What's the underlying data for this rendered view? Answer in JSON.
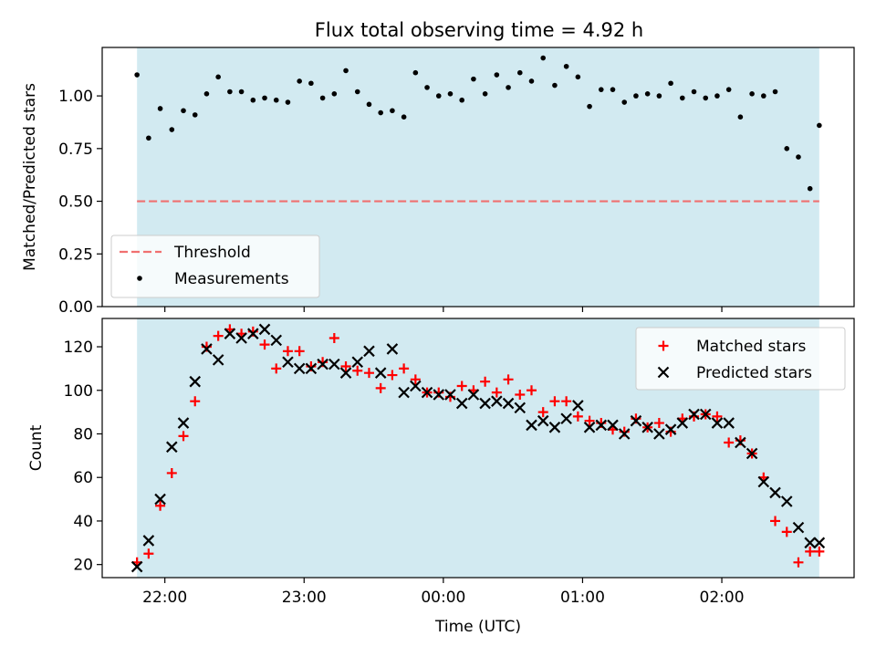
{
  "figure": {
    "title": "Flux total observing time = 4.92 h",
    "xlabel": "Time (UTC)",
    "xticks": [
      "22:00",
      "23:00",
      "00:00",
      "01:00",
      "02:00"
    ]
  },
  "chart_data": [
    {
      "type": "scatter",
      "ylabel": "Matched/Predicted stars",
      "ylim": [
        0.0,
        1.23
      ],
      "yticks": [
        "0.00",
        "0.25",
        "0.50",
        "0.75",
        "1.00"
      ],
      "xlim": [
        "21:33",
        "23:03 next day (02:57)"
      ],
      "shaded_interval": [
        "21:48",
        "02:42"
      ],
      "shade_color": "#add8e6",
      "threshold": {
        "label": "Threshold",
        "value": 0.5,
        "color": "#f07070",
        "style": "dashed"
      },
      "legend": {
        "position": "lower-left",
        "entries": [
          "Threshold",
          "Measurements"
        ]
      },
      "series": [
        {
          "name": "Measurements",
          "marker": "dot",
          "color": "#000000",
          "x": [
            "21:48",
            "21:53",
            "21:58",
            "22:03",
            "22:08",
            "22:13",
            "22:18",
            "22:23",
            "22:28",
            "22:33",
            "22:38",
            "22:43",
            "22:48",
            "22:53",
            "22:58",
            "23:03",
            "23:08",
            "23:13",
            "23:18",
            "23:23",
            "23:28",
            "23:33",
            "23:38",
            "23:43",
            "23:48",
            "23:53",
            "23:58",
            "00:03",
            "00:08",
            "00:13",
            "00:18",
            "00:23",
            "00:28",
            "00:33",
            "00:38",
            "00:43",
            "00:48",
            "00:53",
            "00:58",
            "01:03",
            "01:08",
            "01:13",
            "01:18",
            "01:23",
            "01:28",
            "01:33",
            "01:38",
            "01:43",
            "01:48",
            "01:53",
            "01:58",
            "02:03",
            "02:08",
            "02:13",
            "02:18",
            "02:23",
            "02:28",
            "02:33",
            "02:38",
            "02:42"
          ],
          "y": [
            1.1,
            0.8,
            0.94,
            0.84,
            0.93,
            0.91,
            1.01,
            1.09,
            1.02,
            1.02,
            0.98,
            0.99,
            0.98,
            0.97,
            1.07,
            1.06,
            0.99,
            1.01,
            1.12,
            1.02,
            0.96,
            0.92,
            0.93,
            0.9,
            1.11,
            1.04,
            1.0,
            1.01,
            0.98,
            1.08,
            1.01,
            1.1,
            1.04,
            1.11,
            1.07,
            1.18,
            1.05,
            1.14,
            1.09,
            0.95,
            1.03,
            1.03,
            0.97,
            1.0,
            1.01,
            1.0,
            1.06,
            0.99,
            1.02,
            0.99,
            1.0,
            1.03,
            0.9,
            1.01,
            1.0,
            1.02,
            0.75,
            0.71,
            0.56,
            0.86
          ]
        }
      ]
    },
    {
      "type": "scatter",
      "ylabel": "Count",
      "ylim": [
        14,
        133
      ],
      "yticks": [
        "20",
        "40",
        "60",
        "80",
        "100",
        "120"
      ],
      "shaded_interval": [
        "21:48",
        "02:42"
      ],
      "legend": {
        "position": "top-right",
        "entries": [
          "Matched stars",
          "Predicted stars"
        ]
      },
      "x": [
        "21:48",
        "21:53",
        "21:58",
        "22:03",
        "22:08",
        "22:13",
        "22:18",
        "22:23",
        "22:28",
        "22:33",
        "22:38",
        "22:43",
        "22:48",
        "22:53",
        "22:58",
        "23:03",
        "23:08",
        "23:13",
        "23:18",
        "23:23",
        "23:28",
        "23:33",
        "23:38",
        "23:43",
        "23:48",
        "23:53",
        "23:58",
        "00:03",
        "00:08",
        "00:13",
        "00:18",
        "00:23",
        "00:28",
        "00:33",
        "00:38",
        "00:43",
        "00:48",
        "00:53",
        "00:58",
        "01:03",
        "01:08",
        "01:13",
        "01:18",
        "01:23",
        "01:28",
        "01:33",
        "01:38",
        "01:43",
        "01:48",
        "01:53",
        "01:58",
        "02:03",
        "02:08",
        "02:13",
        "02:18",
        "02:23",
        "02:28",
        "02:33",
        "02:38",
        "02:42"
      ],
      "series": [
        {
          "name": "Matched stars",
          "marker": "plus",
          "color": "#ff0000",
          "values": [
            21,
            25,
            47,
            62,
            79,
            95,
            120,
            125,
            128,
            126,
            127,
            121,
            110,
            118,
            118,
            111,
            113,
            124,
            111,
            109,
            108,
            101,
            107,
            110,
            105,
            99,
            99,
            97,
            102,
            100,
            104,
            99,
            105,
            98,
            100,
            90,
            95,
            95,
            88,
            86,
            85,
            82,
            81,
            87,
            83,
            85,
            81,
            87,
            88,
            89,
            88,
            76,
            77,
            71,
            60,
            40,
            35,
            21,
            26,
            26
          ],
          "y_values": [
            21,
            25,
            47,
            62,
            79,
            95,
            120,
            125,
            128,
            126,
            127,
            121,
            110,
            118,
            118,
            111,
            113,
            124,
            111,
            109,
            108,
            101,
            107,
            110,
            105,
            99,
            99,
            97,
            102,
            100,
            104,
            99,
            105,
            98,
            100,
            90,
            95,
            95,
            88,
            86,
            85,
            82,
            81,
            87,
            83,
            85,
            81,
            87,
            88,
            89,
            88,
            76,
            77,
            71,
            60,
            40,
            35,
            21,
            26,
            26
          ]
        },
        {
          "name": "Predicted stars",
          "marker": "x",
          "color": "#000000",
          "values": [
            19,
            31,
            50,
            74,
            85,
            104,
            119,
            114,
            126,
            124,
            126,
            128,
            123,
            113,
            110,
            110,
            112,
            112,
            108,
            113,
            118,
            108,
            119,
            99,
            102,
            99,
            98,
            98,
            94,
            98,
            94,
            95,
            94,
            92,
            84,
            86,
            83,
            87,
            93,
            83,
            84,
            84,
            80,
            86,
            83,
            80,
            82,
            85,
            89,
            89,
            85,
            85,
            76,
            71,
            58,
            53,
            49,
            37,
            30,
            30
          ],
          "y_values": [
            19,
            31,
            50,
            74,
            85,
            104,
            119,
            114,
            126,
            124,
            126,
            128,
            123,
            113,
            110,
            110,
            112,
            112,
            108,
            113,
            118,
            108,
            119,
            99,
            102,
            99,
            98,
            98,
            94,
            98,
            94,
            95,
            94,
            92,
            84,
            86,
            83,
            87,
            93,
            83,
            84,
            84,
            80,
            86,
            83,
            80,
            82,
            85,
            89,
            89,
            85,
            85,
            76,
            71,
            58,
            53,
            49,
            37,
            30,
            30
          ]
        }
      ]
    }
  ]
}
